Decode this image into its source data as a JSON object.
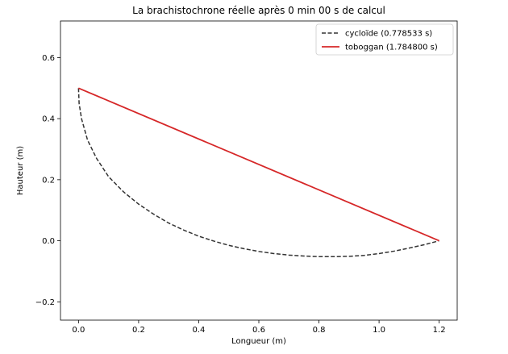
{
  "chart_data": {
    "type": "line",
    "title": "La brachistochrone réelle après 0 min 00 s de calcul",
    "xlabel": "Longueur (m)",
    "ylabel": "Hauteur (m)",
    "xlim": [
      -0.06,
      1.26
    ],
    "ylim": [
      -0.26,
      0.72
    ],
    "x_ticks": [
      0.0,
      0.2,
      0.4,
      0.6,
      0.8,
      1.0,
      1.2
    ],
    "x_tick_labels": [
      "0.0",
      "0.2",
      "0.4",
      "0.6",
      "0.8",
      "1.0",
      "1.2"
    ],
    "y_ticks": [
      -0.2,
      0.0,
      0.2,
      0.4,
      0.6
    ],
    "y_tick_labels": [
      "−0.2",
      "0.0",
      "0.2",
      "0.4",
      "0.6"
    ],
    "grid": false,
    "legend_position": "top-right",
    "series": [
      {
        "name": "cycloïde (0.778533 s)",
        "style": "dashed",
        "color": "#333333",
        "x": [
          0.0,
          0.002,
          0.01,
          0.03,
          0.06,
          0.1,
          0.15,
          0.2,
          0.25,
          0.3,
          0.35,
          0.4,
          0.45,
          0.5,
          0.55,
          0.6,
          0.65,
          0.7,
          0.75,
          0.8,
          0.85,
          0.9,
          0.95,
          1.0,
          1.05,
          1.1,
          1.15,
          1.2
        ],
        "y": [
          0.5,
          0.45,
          0.4,
          0.33,
          0.27,
          0.21,
          0.16,
          0.12,
          0.087,
          0.058,
          0.035,
          0.015,
          -0.001,
          -0.015,
          -0.026,
          -0.035,
          -0.042,
          -0.047,
          -0.05,
          -0.052,
          -0.052,
          -0.051,
          -0.048,
          -0.042,
          -0.034,
          -0.024,
          -0.013,
          0.0
        ]
      },
      {
        "name": "toboggan (1.784800 s)",
        "style": "solid",
        "color": "#d62728",
        "x": [
          0.0,
          1.2
        ],
        "y": [
          0.5,
          0.0
        ]
      }
    ]
  }
}
